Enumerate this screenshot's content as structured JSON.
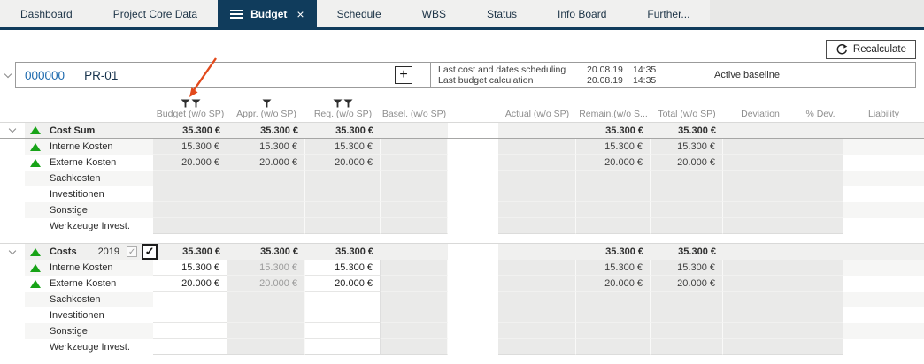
{
  "tabs": [
    {
      "label": "Dashboard",
      "active": false
    },
    {
      "label": "Project Core Data",
      "active": false
    },
    {
      "label": "Budget",
      "active": true
    },
    {
      "label": "Schedule",
      "active": false
    },
    {
      "label": "WBS",
      "active": false
    },
    {
      "label": "Status",
      "active": false
    },
    {
      "label": "Info Board",
      "active": false
    },
    {
      "label": "Further...",
      "active": false
    }
  ],
  "icons": {
    "add": "+",
    "close": "×",
    "check": "✓"
  },
  "toolbar": {
    "recalculate_label": "Recalculate"
  },
  "project": {
    "number": "000000",
    "code": "PR-01",
    "info": [
      {
        "label": "Last cost and dates scheduling",
        "date": "20.08.19",
        "time": "14:35"
      },
      {
        "label": "Last budget calculation",
        "date": "20.08.19",
        "time": "14:35"
      }
    ],
    "baseline": "Active baseline"
  },
  "table": {
    "columns": [
      "Budget (w/o SP)",
      "Appr. (w/o SP)",
      "Req. (w/o SP)",
      "Basel. (w/o SP)",
      "Actual (w/o SP)",
      "Remain.(w/o S...",
      "Total (w/o SP)",
      "Deviation",
      "% Dev.",
      "Liability"
    ],
    "filter_icon_counts": [
      2,
      1,
      2,
      0,
      0,
      0,
      0,
      0,
      0,
      0
    ],
    "sections": [
      {
        "label": "Cost Sum",
        "year": null,
        "editable_columns": [],
        "sums": {
          "budget": "35.300 €",
          "appr": "35.300 €",
          "req": "35.300 €",
          "remain": "35.300 €",
          "total": "35.300 €"
        },
        "rows": [
          {
            "label": "Interne Kosten",
            "trend_up": true,
            "values": {
              "budget": "15.300 €",
              "appr": "15.300 €",
              "req": "15.300 €",
              "remain": "15.300 €",
              "total": "15.300 €"
            }
          },
          {
            "label": "Externe Kosten",
            "trend_up": true,
            "values": {
              "budget": "20.000 €",
              "appr": "20.000 €",
              "req": "20.000 €",
              "remain": "20.000 €",
              "total": "20.000 €"
            }
          },
          {
            "label": "Sachkosten",
            "trend_up": false,
            "values": {}
          },
          {
            "label": "Investitionen",
            "trend_up": false,
            "values": {}
          },
          {
            "label": "Sonstige",
            "trend_up": false,
            "values": {}
          },
          {
            "label": "Werkzeuge Invest.",
            "trend_up": false,
            "values": {}
          }
        ]
      },
      {
        "label": "Costs",
        "year": "2019",
        "year_checkbox_small_checked": true,
        "year_checkbox_large_checked": true,
        "editable_columns": [
          "budget",
          "req"
        ],
        "sums": {
          "budget": "35.300 €",
          "appr": "35.300 €",
          "req": "35.300 €",
          "remain": "35.300 €",
          "total": "35.300 €"
        },
        "rows": [
          {
            "label": "Interne Kosten",
            "trend_up": true,
            "values": {
              "budget": "15.300 €",
              "appr": "15.300 €",
              "req": "15.300 €",
              "remain": "15.300 €",
              "total": "15.300 €"
            }
          },
          {
            "label": "Externe Kosten",
            "trend_up": true,
            "values": {
              "budget": "20.000 €",
              "appr": "20.000 €",
              "req": "20.000 €",
              "remain": "20.000 €",
              "total": "20.000 €"
            }
          },
          {
            "label": "Sachkosten",
            "trend_up": false,
            "values": {}
          },
          {
            "label": "Investitionen",
            "trend_up": false,
            "values": {}
          },
          {
            "label": "Sonstige",
            "trend_up": false,
            "values": {}
          },
          {
            "label": "Werkzeuge Invest.",
            "trend_up": false,
            "values": {}
          }
        ]
      }
    ]
  }
}
